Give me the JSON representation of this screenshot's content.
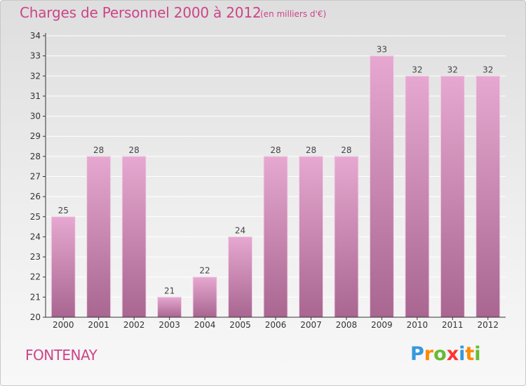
{
  "title": "Charges de Personnel 2000 à 2012",
  "subtitle": "(en milliers d'€)",
  "commune": "FONTENAY",
  "logo": {
    "letters": [
      "P",
      "r",
      "o",
      "x",
      "i",
      "t",
      "i"
    ],
    "colors": [
      "#3399dd",
      "#ff8800",
      "#66bb33",
      "#ff3333",
      "#3399dd",
      "#ff8800",
      "#66bb33"
    ]
  },
  "colors": {
    "title": "#cc4488",
    "bar_top": "#e6a8d0",
    "bar_bottom": "#a86690",
    "axis": "#333333",
    "grid": "#ffffff"
  },
  "chart_data": {
    "type": "bar",
    "categories": [
      "2000",
      "2001",
      "2002",
      "2003",
      "2004",
      "2005",
      "2006",
      "2007",
      "2008",
      "2009",
      "2010",
      "2011",
      "2012"
    ],
    "values": [
      25,
      28,
      28,
      21,
      22,
      24,
      28,
      28,
      28,
      33,
      32,
      32,
      32
    ],
    "data_labels": [
      "25",
      "28",
      "28",
      "21",
      "22",
      "24",
      "28",
      "28",
      "28",
      "33",
      "32",
      "32",
      "32"
    ],
    "y_ticks": [
      "20",
      "21",
      "22",
      "23",
      "24",
      "25",
      "26",
      "27",
      "28",
      "29",
      "30",
      "31",
      "32",
      "33",
      "34"
    ],
    "ylim": [
      20,
      34
    ],
    "grid": true,
    "xlabel": "",
    "ylabel": ""
  }
}
